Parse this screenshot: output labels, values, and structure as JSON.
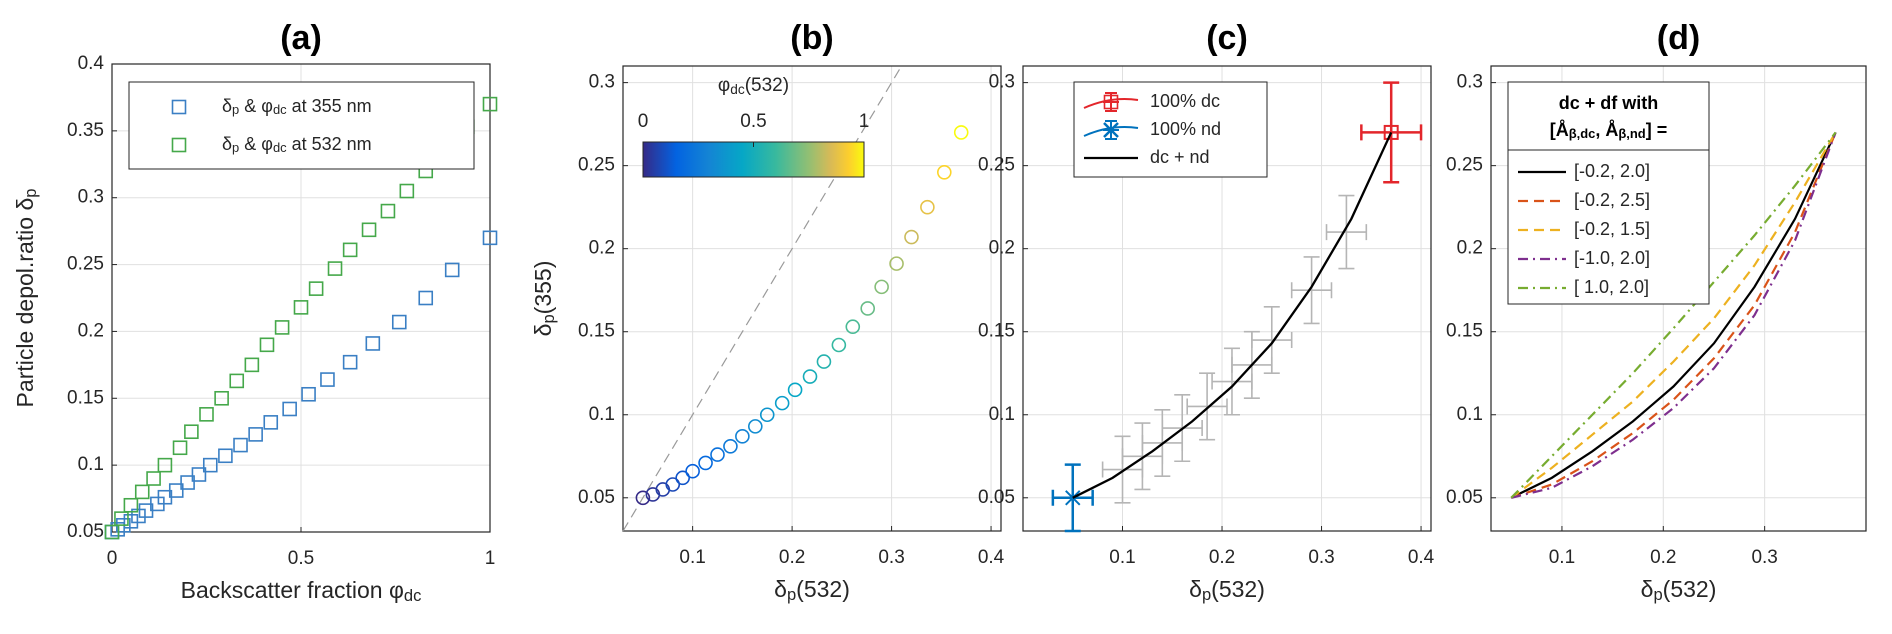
{
  "chart_data": [
    {
      "type": "scatter",
      "title": "(a)",
      "x_label": [
        "Backscatter fraction φ",
        "dc"
      ],
      "y_label": [
        "Particle depol.ratio δ",
        "p"
      ],
      "xlim": [
        0,
        1
      ],
      "ylim": [
        0.05,
        0.4
      ],
      "xticks": [
        0,
        0.5,
        1
      ],
      "yticks": [
        0.05,
        0.1,
        0.15,
        0.2,
        0.25,
        0.3,
        0.35,
        0.4
      ],
      "grid": true,
      "legend": "upper left",
      "series": [
        {
          "name": [
            "δ",
            "p",
            " & φ",
            "dc",
            " at 355 nm"
          ],
          "color": "#3a7fc4",
          "marker": "square",
          "x": [
            0,
            0.015,
            0.03,
            0.05,
            0.07,
            0.09,
            0.12,
            0.14,
            0.17,
            0.2,
            0.23,
            0.26,
            0.3,
            0.34,
            0.38,
            0.42,
            0.47,
            0.52,
            0.57,
            0.63,
            0.69,
            0.76,
            0.83,
            0.9,
            1
          ],
          "values": [
            0.05,
            0.052,
            0.055,
            0.058,
            0.062,
            0.066,
            0.071,
            0.076,
            0.081,
            0.087,
            0.093,
            0.1,
            0.107,
            0.115,
            0.123,
            0.132,
            0.142,
            0.153,
            0.164,
            0.177,
            0.191,
            0.207,
            0.225,
            0.246,
            0.27
          ]
        },
        {
          "name": [
            "δ",
            "p",
            " & φ",
            "dc",
            " at 532 nm"
          ],
          "color": "#45a84a",
          "marker": "square",
          "x": [
            0,
            0.025,
            0.05,
            0.08,
            0.11,
            0.14,
            0.18,
            0.21,
            0.25,
            0.29,
            0.33,
            0.37,
            0.41,
            0.45,
            0.5,
            0.54,
            0.59,
            0.63,
            0.68,
            0.73,
            0.78,
            0.83,
            0.88,
            0.94,
            1
          ],
          "values": [
            0.05,
            0.06,
            0.07,
            0.08,
            0.09,
            0.1,
            0.113,
            0.125,
            0.138,
            0.15,
            0.163,
            0.175,
            0.19,
            0.203,
            0.218,
            0.232,
            0.247,
            0.261,
            0.276,
            0.29,
            0.305,
            0.32,
            0.336,
            0.353,
            0.37
          ]
        }
      ]
    },
    {
      "type": "scatter",
      "title": "(b)",
      "x_label": [
        "δ",
        "p",
        "(532)"
      ],
      "y_label": [
        "δ",
        "p",
        "(355)"
      ],
      "xlim": [
        0.03,
        0.41
      ],
      "ylim": [
        0.03,
        0.31
      ],
      "xticks": [
        0.1,
        0.2,
        0.3,
        0.4
      ],
      "yticks": [
        0.05,
        0.1,
        0.15,
        0.2,
        0.25,
        0.3
      ],
      "grid": true,
      "reference_line": "dashed",
      "x": [
        0.05,
        0.06,
        0.07,
        0.08,
        0.09,
        0.1,
        0.113,
        0.125,
        0.138,
        0.15,
        0.163,
        0.175,
        0.19,
        0.203,
        0.218,
        0.232,
        0.247,
        0.261,
        0.276,
        0.29,
        0.305,
        0.32,
        0.336,
        0.353,
        0.37
      ],
      "values": [
        0.05,
        0.052,
        0.055,
        0.058,
        0.062,
        0.066,
        0.071,
        0.076,
        0.081,
        0.087,
        0.093,
        0.1,
        0.107,
        0.115,
        0.123,
        0.132,
        0.142,
        0.153,
        0.164,
        0.177,
        0.191,
        0.207,
        0.225,
        0.246,
        0.27
      ],
      "color_values": [
        0,
        0.025,
        0.05,
        0.08,
        0.11,
        0.14,
        0.18,
        0.21,
        0.25,
        0.29,
        0.33,
        0.37,
        0.41,
        0.45,
        0.5,
        0.54,
        0.59,
        0.63,
        0.68,
        0.73,
        0.78,
        0.83,
        0.88,
        0.94,
        1
      ],
      "colormap": "parula",
      "colorbar": {
        "title": [
          "φ",
          "dc",
          "(532)"
        ],
        "lim": [
          0,
          1
        ],
        "ticks": [
          0,
          0.5,
          1
        ]
      }
    },
    {
      "type": "errorbar",
      "title": "(c)",
      "x_label": [
        "δ",
        "p",
        "(532)"
      ],
      "xlim": [
        0,
        0.41
      ],
      "ylim": [
        0.03,
        0.31
      ],
      "xticks": [
        0.1,
        0.2,
        0.3,
        0.4
      ],
      "yticks": [
        0.05,
        0.1,
        0.15,
        0.2,
        0.25,
        0.3
      ],
      "grid": true,
      "legend": "upper left",
      "uncertainty": {
        "color": "#b5b5b5",
        "x": [
          0.1,
          0.12,
          0.14,
          0.16,
          0.185,
          0.21,
          0.23,
          0.25,
          0.29,
          0.325
        ],
        "values": [
          0.067,
          0.075,
          0.083,
          0.092,
          0.105,
          0.12,
          0.13,
          0.145,
          0.175,
          0.21
        ],
        "xerr": [
          0.02,
          0.02,
          0.02,
          0.02,
          0.02,
          0.02,
          0.02,
          0.02,
          0.02,
          0.02
        ],
        "yerr": [
          0.02,
          0.02,
          0.02,
          0.02,
          0.02,
          0.02,
          0.02,
          0.02,
          0.02,
          0.022
        ]
      },
      "series": [
        {
          "name": "100% dc",
          "color": "#e3262b",
          "marker": "square",
          "x": [
            0.37
          ],
          "values": [
            0.27
          ],
          "xerr": [
            0.03
          ],
          "yerr": [
            0.03
          ]
        },
        {
          "name": "100% nd",
          "color": "#0072bd",
          "marker": "x",
          "x": [
            0.05
          ],
          "values": [
            0.05
          ],
          "xerr": [
            0.02
          ],
          "yerr": [
            0.02
          ]
        },
        {
          "name": "dc + nd",
          "color": "#000000",
          "marker": "none",
          "dash": "solid",
          "x": [
            0.05,
            0.09,
            0.13,
            0.17,
            0.21,
            0.25,
            0.29,
            0.33,
            0.37
          ],
          "values": [
            0.05,
            0.062,
            0.078,
            0.096,
            0.117,
            0.143,
            0.177,
            0.218,
            0.27
          ]
        }
      ]
    },
    {
      "type": "line",
      "title": "(d)",
      "x_label": [
        "δ",
        "p",
        "(532)"
      ],
      "xlim": [
        0.03,
        0.4
      ],
      "ylim": [
        0.03,
        0.31
      ],
      "xticks": [
        0.1,
        0.2,
        0.3
      ],
      "yticks": [
        0.05,
        0.1,
        0.15,
        0.2,
        0.25,
        0.3
      ],
      "grid": true,
      "legend": "upper left",
      "legend_title": [
        [
          "dc + df with"
        ],
        [
          "[Å",
          "β,dc",
          ", Å",
          "β,nd",
          "] ="
        ]
      ],
      "x": [
        0.05,
        0.09,
        0.13,
        0.17,
        0.21,
        0.25,
        0.29,
        0.33,
        0.37
      ],
      "series": [
        {
          "name": "[-0.2, 2.0]",
          "color": "#000000",
          "dash": "solid",
          "values": [
            0.05,
            0.062,
            0.078,
            0.096,
            0.117,
            0.143,
            0.177,
            0.218,
            0.27
          ]
        },
        {
          "name": "[-0.2, 2.5]",
          "color": "#d95319",
          "dash": "dashed",
          "values": [
            0.05,
            0.058,
            0.072,
            0.089,
            0.109,
            0.134,
            0.166,
            0.21,
            0.27
          ]
        },
        {
          "name": "[-0.2, 1.5]",
          "color": "#edb120",
          "dash": "dashed",
          "values": [
            0.05,
            0.068,
            0.088,
            0.108,
            0.132,
            0.158,
            0.19,
            0.228,
            0.27
          ]
        },
        {
          "name": "[-1.0, 2.0]",
          "color": "#7e2f8e",
          "dash": "dashdot",
          "values": [
            0.05,
            0.056,
            0.069,
            0.085,
            0.104,
            0.128,
            0.16,
            0.205,
            0.27
          ]
        },
        {
          "name": "[ 1.0, 2.0]",
          "color": "#77ac30",
          "dash": "dashdot",
          "values": [
            0.05,
            0.075,
            0.1,
            0.125,
            0.152,
            0.18,
            0.208,
            0.238,
            0.27
          ]
        }
      ]
    }
  ]
}
